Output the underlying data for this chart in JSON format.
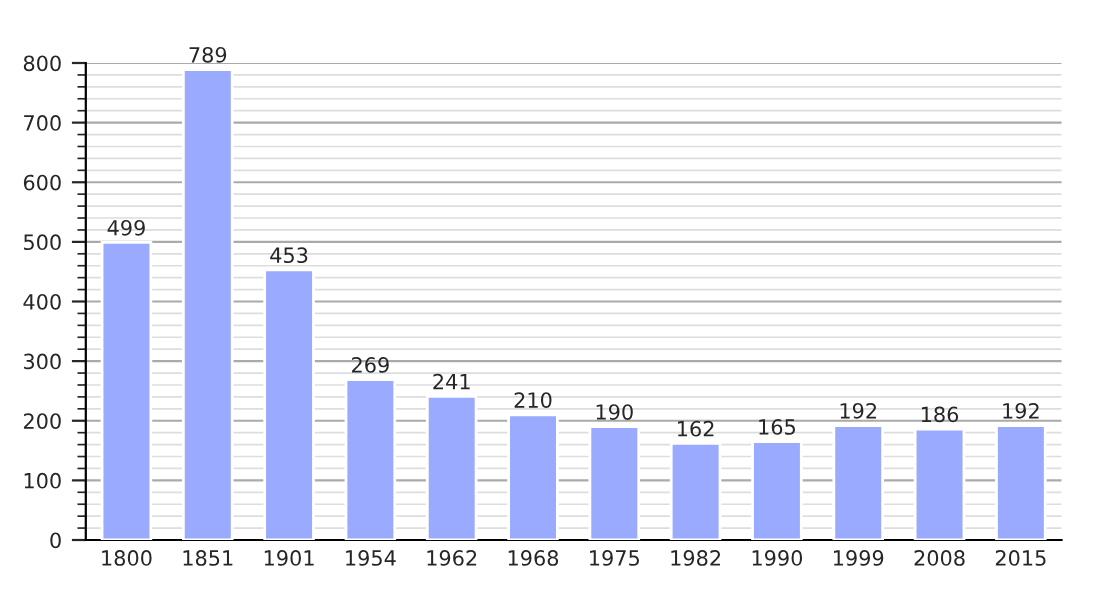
{
  "chart_data": {
    "type": "bar",
    "categories": [
      "1800",
      "1851",
      "1901",
      "1954",
      "1962",
      "1968",
      "1975",
      "1982",
      "1990",
      "1999",
      "2008",
      "2015"
    ],
    "values": [
      499,
      789,
      453,
      269,
      241,
      210,
      190,
      162,
      165,
      192,
      186,
      192
    ],
    "color": "#99aaff",
    "ylim": [
      0,
      800
    ],
    "yticks": [
      0,
      100,
      200,
      300,
      400,
      500,
      600,
      700,
      800
    ],
    "grid": "y",
    "data_labels": true
  }
}
